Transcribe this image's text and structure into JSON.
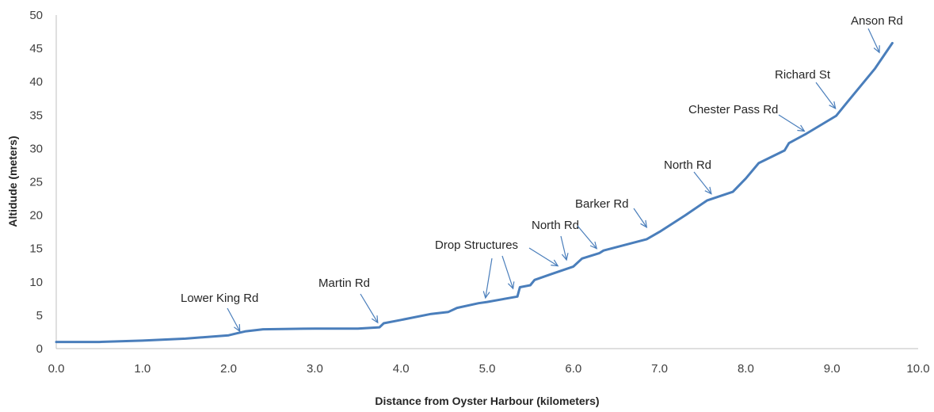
{
  "chart_data": {
    "type": "line",
    "xlabel": "Distance from Oyster Harbour (kilometers)",
    "ylabel": "Altidude (meters)",
    "xlim": [
      0,
      10
    ],
    "ylim": [
      0,
      50
    ],
    "x_ticks": [
      "0.0",
      "1.0",
      "2.0",
      "3.0",
      "4.0",
      "5.0",
      "6.0",
      "7.0",
      "8.0",
      "9.0",
      "10.0"
    ],
    "y_ticks": [
      "0",
      "5",
      "10",
      "15",
      "20",
      "25",
      "30",
      "35",
      "40",
      "45",
      "50"
    ],
    "grid": false,
    "legend": "none",
    "series": [
      {
        "color": "#4a7ebb",
        "x": [
          0.0,
          0.5,
          1.0,
          1.5,
          2.0,
          2.1,
          2.2,
          2.4,
          3.0,
          3.5,
          3.75,
          3.8,
          4.0,
          4.35,
          4.55,
          4.65,
          4.9,
          5.0,
          5.35,
          5.38,
          5.5,
          5.55,
          5.75,
          6.0,
          6.1,
          6.3,
          6.35,
          6.85,
          7.0,
          7.3,
          7.55,
          7.85,
          8.0,
          8.15,
          8.45,
          8.5,
          8.7,
          9.05,
          9.2,
          9.5,
          9.7
        ],
        "y": [
          1.0,
          1.0,
          1.2,
          1.5,
          2.0,
          2.3,
          2.6,
          2.9,
          3.0,
          3.0,
          3.2,
          3.8,
          4.3,
          5.2,
          5.5,
          6.1,
          6.8,
          7.0,
          7.8,
          9.2,
          9.5,
          10.3,
          11.2,
          12.3,
          13.5,
          14.3,
          14.7,
          16.4,
          17.5,
          20.0,
          22.2,
          23.5,
          25.5,
          27.8,
          29.7,
          30.8,
          32.2,
          34.9,
          37.3,
          42.0,
          45.8
        ]
      }
    ],
    "annotations": [
      {
        "text": "Lower King Rd",
        "x": 2.13,
        "y": 2.6
      },
      {
        "text": "Martin Rd",
        "x": 3.73,
        "y": 3.9
      },
      {
        "text": "Drop Structures",
        "x": 4.98,
        "y": 7.6
      },
      {
        "text": "Drop Structures",
        "x": 5.3,
        "y": 9.0
      },
      {
        "text": "Drop Structures",
        "x": 5.82,
        "y": 12.4
      },
      {
        "text": "North Rd",
        "x": 5.92,
        "y": 13.3
      },
      {
        "text": "North Rd",
        "x": 6.27,
        "y": 15.0
      },
      {
        "text": "Barker Rd",
        "x": 6.85,
        "y": 18.2
      },
      {
        "text": "North Rd",
        "x": 7.6,
        "y": 23.2
      },
      {
        "text": "Chester Pass Rd",
        "x": 8.68,
        "y": 32.6
      },
      {
        "text": "Richard St",
        "x": 9.04,
        "y": 36.0
      },
      {
        "text": "Anson Rd",
        "x": 9.55,
        "y": 44.4
      }
    ]
  }
}
